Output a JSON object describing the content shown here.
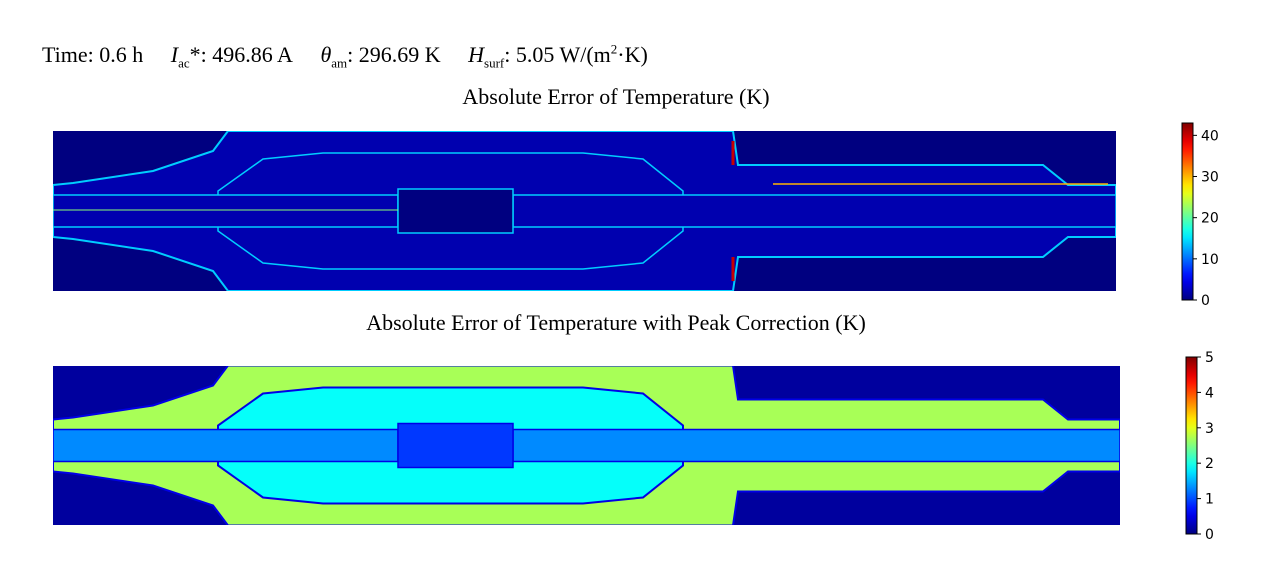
{
  "header": {
    "time": "Time: 0.6 h",
    "current_symbol": "I",
    "current_sub": "ac",
    "current_value": "*: 496.86 A",
    "ambient_symbol": "θ",
    "ambient_sub": "am",
    "ambient_value": ": 296.69 K",
    "surface_symbol": "H",
    "surface_sub": "surf",
    "surface_value_pre": ": 5.05 W/(m",
    "surface_sup": "2",
    "surface_value_post": "·K)"
  },
  "chart_data": [
    {
      "type": "heatmap",
      "title": "Absolute Error of Temperature (K)",
      "colormap": "jet",
      "vmin": 0,
      "vmax": 43,
      "colorbar_ticks": [
        0,
        10,
        20,
        30,
        40
      ],
      "background_value": 0,
      "body_value": 2,
      "boundary_value": 14,
      "hot_edge_value": 40,
      "colors": {
        "low": "#00008f",
        "high": "#800000"
      }
    },
    {
      "type": "heatmap",
      "title": "Absolute Error of Temperature with Peak Correction (K)",
      "colormap": "jet",
      "vmin": 0,
      "vmax": 5,
      "colorbar_ticks": [
        0,
        1,
        2,
        3,
        4,
        5
      ],
      "background_value": 0.15,
      "outer_body_value": 2.7,
      "inner_body_value": 1.9,
      "conductor_value": 1.3,
      "joint_value": 0.9,
      "boundary_value": 0.5,
      "colors": {
        "low": "#00008f",
        "high": "#800000"
      }
    }
  ]
}
